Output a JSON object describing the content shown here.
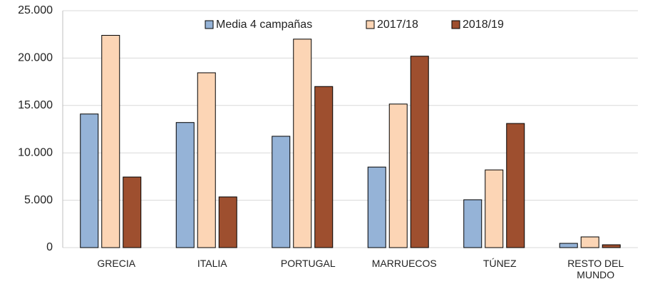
{
  "chart_data": {
    "type": "bar",
    "categories": [
      "GRECIA",
      "ITALIA",
      "PORTUGAL",
      "MARRUECOS",
      "TÚNEZ",
      "RESTO DEL MUNDO"
    ],
    "series": [
      {
        "name": "Media 4 campañas",
        "color": "#95b3d7",
        "values": [
          14100,
          13200,
          11750,
          8500,
          5050,
          450
        ]
      },
      {
        "name": "2017/18",
        "color": "#fcd5b5",
        "values": [
          22400,
          18450,
          22000,
          15150,
          8200,
          1130
        ]
      },
      {
        "name": "2018/19",
        "color": "#9e4f2f",
        "values": [
          7450,
          5350,
          17000,
          20200,
          13100,
          300
        ]
      }
    ],
    "ylim": [
      0,
      25000
    ],
    "yticks": [
      0,
      {
        "value": 5000,
        "label": "5.000"
      },
      {
        "value": 10000,
        "label": "10.000"
      },
      {
        "value": 15000,
        "label": "15.000"
      },
      {
        "value": 20000,
        "label": "20.000"
      },
      {
        "value": 25000,
        "label": "25.000"
      }
    ],
    "grid": true,
    "legend": "top"
  }
}
